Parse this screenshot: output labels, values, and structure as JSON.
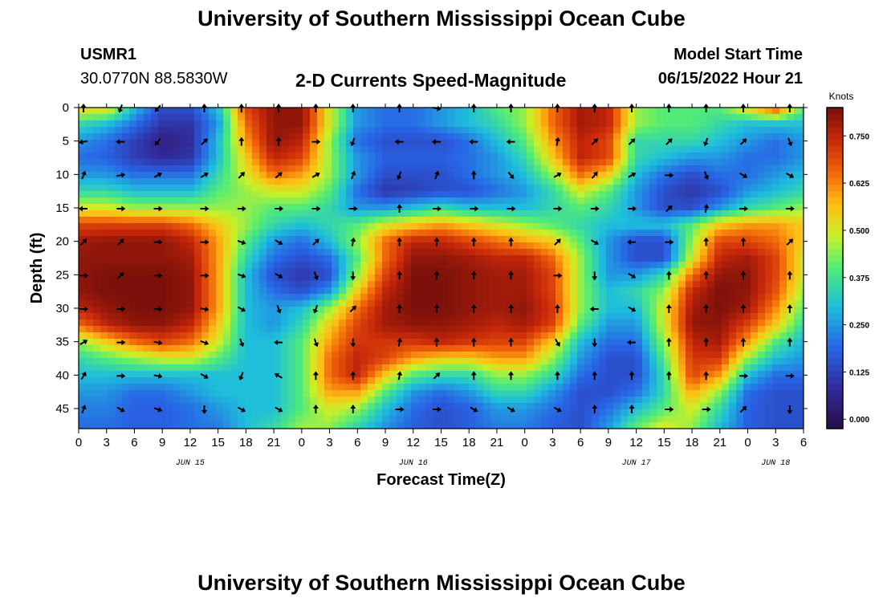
{
  "header": {
    "title": "University of Southern Mississippi Ocean Cube",
    "station": "USMR1",
    "coords": "30.0770N  88.5830W",
    "subtitle": "2-D Currents Speed-Magnitude",
    "model_label": "Model Start Time",
    "model_time": "06/15/2022 Hour 21"
  },
  "footer": {
    "title": "University of Southern Mississippi Ocean Cube"
  },
  "chart_data": {
    "type": "heatmap",
    "title": "2-D Currents Speed-Magnitude",
    "xlabel": "Forecast Time(Z)",
    "ylabel": "Depth (ft)",
    "x_tick_labels": [
      "0",
      "3",
      "6",
      "9",
      "12",
      "15",
      "18",
      "21",
      "0",
      "3",
      "6",
      "9",
      "12",
      "15",
      "18",
      "21",
      "0",
      "3",
      "6",
      "9",
      "12",
      "15",
      "18",
      "21",
      "0",
      "3",
      "6"
    ],
    "x_range_hours": [
      0,
      78
    ],
    "date_labels": [
      {
        "text": "JUN 15",
        "hour": 12
      },
      {
        "text": "JUN 16",
        "hour": 36
      },
      {
        "text": "JUN 17",
        "hour": 60
      },
      {
        "text": "JUN 18",
        "hour": 75
      }
    ],
    "y_ticks": [
      0,
      5,
      10,
      15,
      20,
      25,
      30,
      35,
      40,
      45
    ],
    "y_range": [
      0,
      48
    ],
    "colorbar": {
      "label": "Knots",
      "range": [
        -0.025,
        0.825
      ],
      "ticks": [
        "0.750",
        "0.625",
        "0.500",
        "0.375",
        "0.250",
        "0.125",
        "0.000"
      ],
      "tick_values": [
        0.75,
        0.625,
        0.5,
        0.375,
        0.25,
        0.125,
        0.0
      ]
    },
    "speed_field_knots": {
      "description": "approximate speed magnitude, rows = depth from 0 to 47.5 ft in 2.5 ft steps, cols = forecast hour 0 to 78 in 3 h steps",
      "rows": [
        [
          0.55,
          0.55,
          0.3,
          0.15,
          0.15,
          0.3,
          0.7,
          0.8,
          0.8,
          0.5,
          0.25,
          0.2,
          0.2,
          0.25,
          0.3,
          0.4,
          0.45,
          0.65,
          0.78,
          0.75,
          0.45,
          0.4,
          0.4,
          0.4,
          0.55,
          0.7,
          0.4
        ],
        [
          0.35,
          0.3,
          0.2,
          0.1,
          0.1,
          0.25,
          0.65,
          0.8,
          0.8,
          0.5,
          0.25,
          0.2,
          0.2,
          0.25,
          0.3,
          0.35,
          0.45,
          0.65,
          0.78,
          0.75,
          0.45,
          0.4,
          0.4,
          0.35,
          0.3,
          0.3,
          0.3
        ],
        [
          0.25,
          0.2,
          0.12,
          0.05,
          0.08,
          0.3,
          0.6,
          0.8,
          0.75,
          0.45,
          0.2,
          0.15,
          0.15,
          0.15,
          0.2,
          0.3,
          0.4,
          0.6,
          0.75,
          0.7,
          0.35,
          0.35,
          0.35,
          0.3,
          0.25,
          0.2,
          0.25
        ],
        [
          0.2,
          0.18,
          0.12,
          0.08,
          0.1,
          0.3,
          0.55,
          0.75,
          0.7,
          0.45,
          0.25,
          0.18,
          0.18,
          0.18,
          0.2,
          0.25,
          0.35,
          0.55,
          0.75,
          0.7,
          0.35,
          0.3,
          0.25,
          0.25,
          0.2,
          0.2,
          0.25
        ],
        [
          0.25,
          0.25,
          0.2,
          0.2,
          0.2,
          0.35,
          0.5,
          0.65,
          0.6,
          0.45,
          0.25,
          0.15,
          0.15,
          0.15,
          0.2,
          0.25,
          0.3,
          0.45,
          0.65,
          0.55,
          0.3,
          0.2,
          0.15,
          0.2,
          0.2,
          0.25,
          0.3
        ],
        [
          0.35,
          0.35,
          0.3,
          0.3,
          0.3,
          0.4,
          0.45,
          0.5,
          0.5,
          0.4,
          0.2,
          0.1,
          0.12,
          0.15,
          0.15,
          0.2,
          0.25,
          0.35,
          0.5,
          0.4,
          0.25,
          0.15,
          0.1,
          0.15,
          0.25,
          0.3,
          0.35
        ],
        [
          0.5,
          0.5,
          0.45,
          0.45,
          0.45,
          0.45,
          0.45,
          0.4,
          0.4,
          0.35,
          0.25,
          0.25,
          0.3,
          0.35,
          0.3,
          0.3,
          0.3,
          0.35,
          0.4,
          0.35,
          0.25,
          0.15,
          0.15,
          0.25,
          0.35,
          0.4,
          0.45
        ],
        [
          0.7,
          0.7,
          0.7,
          0.7,
          0.65,
          0.55,
          0.45,
          0.35,
          0.3,
          0.35,
          0.4,
          0.5,
          0.55,
          0.6,
          0.55,
          0.5,
          0.45,
          0.4,
          0.35,
          0.3,
          0.3,
          0.3,
          0.4,
          0.55,
          0.6,
          0.6,
          0.55
        ],
        [
          0.78,
          0.8,
          0.8,
          0.8,
          0.75,
          0.6,
          0.4,
          0.25,
          0.2,
          0.3,
          0.45,
          0.65,
          0.75,
          0.75,
          0.7,
          0.65,
          0.6,
          0.55,
          0.4,
          0.25,
          0.15,
          0.15,
          0.45,
          0.7,
          0.7,
          0.65,
          0.55
        ],
        [
          0.8,
          0.8,
          0.8,
          0.8,
          0.78,
          0.6,
          0.35,
          0.2,
          0.15,
          0.2,
          0.4,
          0.65,
          0.8,
          0.8,
          0.78,
          0.75,
          0.75,
          0.65,
          0.45,
          0.25,
          0.15,
          0.15,
          0.5,
          0.75,
          0.78,
          0.7,
          0.5
        ],
        [
          0.8,
          0.82,
          0.82,
          0.82,
          0.8,
          0.6,
          0.3,
          0.15,
          0.1,
          0.15,
          0.45,
          0.7,
          0.82,
          0.82,
          0.8,
          0.78,
          0.78,
          0.7,
          0.45,
          0.25,
          0.25,
          0.35,
          0.65,
          0.8,
          0.8,
          0.7,
          0.5
        ],
        [
          0.8,
          0.82,
          0.82,
          0.82,
          0.8,
          0.6,
          0.3,
          0.2,
          0.15,
          0.25,
          0.55,
          0.75,
          0.82,
          0.82,
          0.8,
          0.78,
          0.78,
          0.7,
          0.45,
          0.3,
          0.35,
          0.45,
          0.75,
          0.82,
          0.8,
          0.68,
          0.45
        ],
        [
          0.75,
          0.8,
          0.82,
          0.82,
          0.8,
          0.6,
          0.3,
          0.25,
          0.3,
          0.45,
          0.65,
          0.78,
          0.82,
          0.82,
          0.8,
          0.78,
          0.8,
          0.72,
          0.45,
          0.3,
          0.3,
          0.5,
          0.78,
          0.82,
          0.78,
          0.62,
          0.4
        ],
        [
          0.65,
          0.75,
          0.8,
          0.8,
          0.75,
          0.55,
          0.3,
          0.25,
          0.35,
          0.55,
          0.7,
          0.78,
          0.8,
          0.8,
          0.78,
          0.75,
          0.78,
          0.7,
          0.4,
          0.25,
          0.25,
          0.5,
          0.8,
          0.8,
          0.7,
          0.55,
          0.35
        ],
        [
          0.45,
          0.55,
          0.65,
          0.7,
          0.65,
          0.5,
          0.3,
          0.3,
          0.4,
          0.6,
          0.72,
          0.72,
          0.72,
          0.75,
          0.72,
          0.7,
          0.7,
          0.55,
          0.3,
          0.2,
          0.2,
          0.45,
          0.75,
          0.78,
          0.6,
          0.4,
          0.28
        ],
        [
          0.35,
          0.4,
          0.45,
          0.5,
          0.5,
          0.4,
          0.3,
          0.3,
          0.4,
          0.65,
          0.75,
          0.7,
          0.6,
          0.55,
          0.55,
          0.6,
          0.6,
          0.45,
          0.25,
          0.15,
          0.15,
          0.4,
          0.72,
          0.72,
          0.45,
          0.3,
          0.25
        ],
        [
          0.3,
          0.3,
          0.3,
          0.3,
          0.3,
          0.3,
          0.3,
          0.3,
          0.4,
          0.65,
          0.75,
          0.55,
          0.4,
          0.35,
          0.35,
          0.45,
          0.45,
          0.35,
          0.2,
          0.15,
          0.15,
          0.35,
          0.7,
          0.6,
          0.3,
          0.2,
          0.2
        ],
        [
          0.25,
          0.25,
          0.2,
          0.2,
          0.25,
          0.3,
          0.3,
          0.3,
          0.4,
          0.6,
          0.6,
          0.4,
          0.25,
          0.2,
          0.25,
          0.35,
          0.35,
          0.25,
          0.15,
          0.15,
          0.2,
          0.35,
          0.6,
          0.45,
          0.2,
          0.15,
          0.15
        ],
        [
          0.22,
          0.22,
          0.18,
          0.18,
          0.2,
          0.25,
          0.3,
          0.3,
          0.4,
          0.5,
          0.45,
          0.3,
          0.2,
          0.15,
          0.18,
          0.25,
          0.25,
          0.2,
          0.15,
          0.2,
          0.3,
          0.4,
          0.5,
          0.35,
          0.18,
          0.15,
          0.15
        ],
        [
          0.2,
          0.2,
          0.18,
          0.18,
          0.2,
          0.22,
          0.3,
          0.35,
          0.45,
          0.45,
          0.35,
          0.25,
          0.18,
          0.15,
          0.18,
          0.22,
          0.22,
          0.18,
          0.15,
          0.25,
          0.4,
          0.5,
          0.45,
          0.3,
          0.18,
          0.15,
          0.15
        ]
      ]
    },
    "arrow_grid": {
      "hours": [
        0,
        4,
        8,
        13,
        17,
        21,
        25,
        29,
        34,
        38,
        42,
        46,
        51,
        55,
        59,
        63,
        67,
        71,
        76
      ],
      "depths": [
        0,
        5,
        10,
        15,
        20,
        25,
        30,
        35,
        40,
        45
      ],
      "angles_deg_from_north": [
        [
          0,
          200,
          220,
          0,
          0,
          0,
          0,
          0,
          0,
          100,
          0,
          0,
          0,
          0,
          0,
          0,
          0,
          0,
          0
        ],
        [
          260,
          270,
          220,
          45,
          0,
          0,
          90,
          200,
          270,
          270,
          270,
          270,
          10,
          45,
          45,
          45,
          200,
          45,
          160
        ],
        [
          20,
          80,
          60,
          60,
          45,
          50,
          60,
          20,
          200,
          20,
          0,
          140,
          60,
          40,
          60,
          90,
          160,
          120,
          120
        ],
        [
          270,
          90,
          90,
          90,
          90,
          90,
          90,
          90,
          0,
          90,
          90,
          90,
          90,
          90,
          90,
          45,
          10,
          90,
          90
        ],
        [
          45,
          45,
          90,
          90,
          110,
          120,
          45,
          10,
          0,
          0,
          0,
          0,
          45,
          120,
          270,
          90,
          0,
          0,
          45
        ],
        [
          90,
          45,
          90,
          90,
          110,
          120,
          160,
          180,
          0,
          0,
          0,
          0,
          90,
          180,
          120,
          0,
          0,
          0,
          0
        ],
        [
          90,
          90,
          90,
          100,
          120,
          160,
          200,
          45,
          0,
          0,
          0,
          0,
          0,
          270,
          120,
          0,
          0,
          0,
          0
        ],
        [
          60,
          90,
          100,
          110,
          160,
          270,
          160,
          180,
          10,
          0,
          0,
          0,
          150,
          180,
          270,
          0,
          0,
          0,
          0
        ],
        [
          30,
          90,
          100,
          120,
          200,
          300,
          0,
          0,
          10,
          45,
          0,
          0,
          0,
          0,
          0,
          0,
          0,
          90,
          90
        ],
        [
          20,
          120,
          110,
          180,
          120,
          120,
          0,
          0,
          90,
          90,
          120,
          120,
          120,
          0,
          0,
          90,
          90,
          45,
          180
        ]
      ]
    }
  }
}
